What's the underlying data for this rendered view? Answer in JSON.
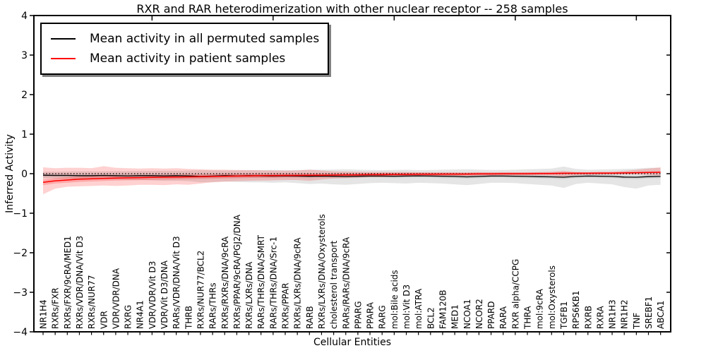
{
  "title": "RXR and RAR heterodimerization with other nuclear receptor -- 258 samples",
  "legend": {
    "items": [
      {
        "label": "Mean activity in all permuted samples",
        "color": "#000000"
      },
      {
        "label": "Mean activity in patient samples",
        "color": "#ff0000"
      }
    ]
  },
  "chart_data": {
    "type": "line",
    "title": "RXR and RAR heterodimerization with other nuclear receptor -- 258 samples",
    "xlabel": "Cellular Entities",
    "ylabel": "Inferred Activity",
    "ylim": [
      -4,
      4
    ],
    "ytick_labels": [
      "4",
      "3",
      "2",
      "1",
      "0",
      "−1",
      "−2",
      "−3",
      "−4"
    ],
    "ytick_values": [
      4,
      3,
      2,
      1,
      0,
      -1,
      -2,
      -3,
      -4
    ],
    "grid": false,
    "legend_position": "upper left",
    "background": "#ffffff",
    "colors": {
      "permuted": "#000000",
      "patient": "#ff0000",
      "permuted_band": "rgba(0,0,0,0.10)",
      "patient_band": "rgba(255,0,0,0.18)"
    },
    "categories": [
      "NR1H4",
      "RXRs/FXR",
      "RXRs/FXR/9cRA/MED1",
      "RXRs/VDR/DNA/Vit D3",
      "RXRs/NUR77",
      "VDR",
      "VDR/VDR/DNA",
      "RXRG",
      "NR4A1",
      "VDR/VDR/Vit D3",
      "VDR/Vit D3/DNA",
      "RARs/VDR/DNA/Vit D3",
      "THRB",
      "RXRs/NUR77/BCL2",
      "RARs/THRs",
      "RXRs/RXRs/DNA/9cRA",
      "RXRs/PPAR/9cRA/PGJ2/DNA",
      "RXRs/LXRs/DNA",
      "RARs/THRs/DNA/SMRT",
      "RARs/THRs/DNA/Src-1",
      "RXRs/PPAR",
      "RXRs/LXRs/DNA/9cRA",
      "RARB",
      "RXRs/LXRs/DNA/Oxysterols",
      "cholesterol transport",
      "RARs/RARs/DNA/9cRA",
      "PPARG",
      "PPARA",
      "RARG",
      "mol:Bile acids",
      "mol:Vit D3",
      "mol:ATRA",
      "BCL2",
      "FAM120B",
      "MED1",
      "NCOA1",
      "NCOR2",
      "PPARD",
      "RARA",
      "RXR alpha/CCPG",
      "THRA",
      "mol:9cRA",
      "mol:Oxysterols",
      "TGFB1",
      "RPS6KB1",
      "RXRB",
      "RXRA",
      "NR1H3",
      "NR1H2",
      "TNF",
      "SREBF1",
      "ABCA1"
    ],
    "series": [
      {
        "name": "Mean activity in all permuted samples",
        "color": "#000000",
        "values": [
          -0.04,
          -0.045,
          -0.045,
          -0.05,
          -0.05,
          -0.045,
          -0.05,
          -0.055,
          -0.05,
          -0.05,
          -0.055,
          -0.05,
          -0.055,
          -0.07,
          -0.06,
          -0.05,
          -0.055,
          -0.05,
          -0.055,
          -0.06,
          -0.055,
          -0.06,
          -0.065,
          -0.06,
          -0.065,
          -0.07,
          -0.065,
          -0.06,
          -0.06,
          -0.065,
          -0.06,
          -0.055,
          -0.06,
          -0.065,
          -0.07,
          -0.08,
          -0.07,
          -0.06,
          -0.06,
          -0.065,
          -0.07,
          -0.075,
          -0.08,
          -0.09,
          -0.07,
          -0.06,
          -0.065,
          -0.07,
          -0.085,
          -0.09,
          -0.075,
          -0.07
        ]
      },
      {
        "name": "Mean activity in patient samples",
        "color": "#ff0000",
        "values": [
          -0.22,
          -0.18,
          -0.16,
          -0.14,
          -0.13,
          -0.12,
          -0.11,
          -0.105,
          -0.1,
          -0.095,
          -0.09,
          -0.085,
          -0.08,
          -0.075,
          -0.07,
          -0.065,
          -0.06,
          -0.055,
          -0.05,
          -0.05,
          -0.045,
          -0.045,
          -0.04,
          -0.04,
          -0.035,
          -0.03,
          -0.03,
          -0.025,
          -0.025,
          -0.02,
          -0.02,
          -0.015,
          -0.015,
          -0.01,
          -0.01,
          -0.01,
          -0.005,
          -0.005,
          0,
          0,
          0,
          0.005,
          0.005,
          0.01,
          0.01,
          0.01,
          0.015,
          0.015,
          0.02,
          0.025,
          0.03,
          0.035
        ]
      }
    ],
    "bands": {
      "permuted": {
        "upper": [
          0.05,
          0.05,
          0.055,
          0.06,
          0.06,
          0.06,
          0.065,
          0.065,
          0.07,
          0.07,
          0.075,
          0.075,
          0.08,
          0.09,
          0.085,
          0.08,
          0.085,
          0.09,
          0.09,
          0.095,
          0.09,
          0.095,
          0.1,
          0.1,
          0.105,
          0.11,
          0.1,
          0.095,
          0.09,
          0.095,
          0.1,
          0.09,
          0.095,
          0.1,
          0.105,
          0.11,
          0.1,
          0.095,
          0.095,
          0.1,
          0.11,
          0.12,
          0.13,
          0.18,
          0.12,
          0.1,
          0.105,
          0.11,
          0.12,
          0.13,
          0.15,
          0.15
        ],
        "lower": [
          -0.12,
          -0.12,
          -0.13,
          -0.14,
          -0.14,
          -0.14,
          -0.15,
          -0.16,
          -0.16,
          -0.17,
          -0.18,
          -0.18,
          -0.19,
          -0.22,
          -0.21,
          -0.2,
          -0.21,
          -0.22,
          -0.22,
          -0.23,
          -0.22,
          -0.24,
          -0.26,
          -0.25,
          -0.27,
          -0.28,
          -0.26,
          -0.24,
          -0.23,
          -0.24,
          -0.25,
          -0.23,
          -0.24,
          -0.25,
          -0.27,
          -0.29,
          -0.26,
          -0.23,
          -0.23,
          -0.24,
          -0.26,
          -0.28,
          -0.3,
          -0.36,
          -0.26,
          -0.23,
          -0.25,
          -0.27,
          -0.34,
          -0.38,
          -0.3,
          -0.28
        ]
      },
      "patient": {
        "upper": [
          0.16,
          0.14,
          0.15,
          0.15,
          0.14,
          0.19,
          0.15,
          0.14,
          0.13,
          0.14,
          0.13,
          0.14,
          0.12,
          0.11,
          0.1,
          0.1,
          0.095,
          0.09,
          0.085,
          0.08,
          0.075,
          0.08,
          0.1,
          0.08,
          0.06,
          0.055,
          0.05,
          0.045,
          0.045,
          0.04,
          0.04,
          0.035,
          0.035,
          0.03,
          0.03,
          0.03,
          0.03,
          0.03,
          0.03,
          0.03,
          0.035,
          0.04,
          0.05,
          0.07,
          0.04,
          0.04,
          0.045,
          0.05,
          0.07,
          0.1,
          0.13,
          0.16
        ],
        "lower": [
          -0.52,
          -0.38,
          -0.33,
          -0.32,
          -0.31,
          -0.3,
          -0.31,
          -0.3,
          -0.28,
          -0.28,
          -0.29,
          -0.27,
          -0.28,
          -0.25,
          -0.22,
          -0.2,
          -0.19,
          -0.18,
          -0.175,
          -0.17,
          -0.16,
          -0.16,
          -0.18,
          -0.15,
          -0.12,
          -0.11,
          -0.1,
          -0.09,
          -0.09,
          -0.08,
          -0.075,
          -0.07,
          -0.065,
          -0.06,
          -0.055,
          -0.055,
          -0.05,
          -0.05,
          -0.045,
          -0.045,
          -0.045,
          -0.04,
          -0.05,
          -0.08,
          -0.04,
          -0.03,
          -0.03,
          -0.025,
          -0.02,
          -0.02,
          -0.03,
          -0.05
        ]
      }
    },
    "inner_band_halfwidth": {
      "permuted": 0.045,
      "patient_start": 0.07,
      "patient_end": 0.02
    },
    "reference_line": {
      "y": 0,
      "style": "dotted",
      "color": "#000000"
    }
  }
}
